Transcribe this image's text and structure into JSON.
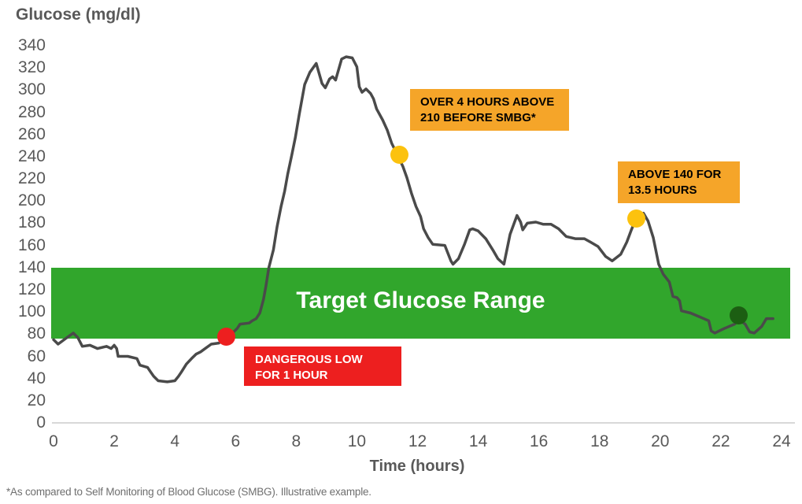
{
  "footnote": "*As compared to Self Monitoring of Blood Glucose (SMBG). Illustrative example.",
  "chart_data": {
    "type": "line",
    "title": "",
    "ylabel": "Glucose (mg/dl)",
    "xlabel": "Time (hours)",
    "xlim": [
      0,
      24
    ],
    "ylim": [
      0,
      340
    ],
    "x_ticks": [
      0,
      2,
      4,
      6,
      8,
      10,
      12,
      14,
      16,
      18,
      20,
      22,
      24
    ],
    "y_ticks": [
      0,
      20,
      40,
      60,
      80,
      100,
      120,
      140,
      160,
      180,
      200,
      220,
      240,
      260,
      280,
      300,
      320,
      340
    ],
    "grid": false,
    "line_color": "#4a4a4a",
    "axis_color": "#d8d8d8",
    "text_color": "#595959",
    "target_range": {
      "label": "Target Glucose Range",
      "low": 80,
      "high": 140,
      "color": "#31a62c"
    },
    "series": [
      {
        "name": "glucose",
        "points": [
          [
            0,
            75
          ],
          [
            0.15,
            71
          ],
          [
            0.45,
            77
          ],
          [
            0.65,
            81
          ],
          [
            0.8,
            77
          ],
          [
            0.95,
            69
          ],
          [
            1.2,
            70
          ],
          [
            1.45,
            67
          ],
          [
            1.75,
            69
          ],
          [
            1.9,
            67
          ],
          [
            2.0,
            70
          ],
          [
            2.08,
            67
          ],
          [
            2.13,
            60
          ],
          [
            2.45,
            60
          ],
          [
            2.75,
            58
          ],
          [
            2.85,
            52
          ],
          [
            3.1,
            50
          ],
          [
            3.2,
            46
          ],
          [
            3.3,
            42
          ],
          [
            3.45,
            38
          ],
          [
            3.75,
            37
          ],
          [
            4.0,
            38
          ],
          [
            4.12,
            42
          ],
          [
            4.22,
            46
          ],
          [
            4.38,
            53
          ],
          [
            4.55,
            58
          ],
          [
            4.7,
            62
          ],
          [
            4.85,
            64
          ],
          [
            5.0,
            67
          ],
          [
            5.2,
            71
          ],
          [
            5.45,
            72
          ],
          [
            5.6,
            75
          ],
          [
            5.7,
            78
          ],
          [
            5.9,
            81
          ],
          [
            6.05,
            85
          ],
          [
            6.15,
            89
          ],
          [
            6.45,
            90
          ],
          [
            6.55,
            92
          ],
          [
            6.68,
            94
          ],
          [
            6.8,
            99
          ],
          [
            6.92,
            111
          ],
          [
            7.0,
            123
          ],
          [
            7.1,
            140
          ],
          [
            7.25,
            156
          ],
          [
            7.37,
            177
          ],
          [
            7.5,
            195
          ],
          [
            7.62,
            209
          ],
          [
            7.72,
            224
          ],
          [
            7.85,
            241
          ],
          [
            7.97,
            257
          ],
          [
            8.1,
            278
          ],
          [
            8.28,
            305
          ],
          [
            8.45,
            316
          ],
          [
            8.66,
            324
          ],
          [
            8.85,
            306
          ],
          [
            8.96,
            302
          ],
          [
            9.1,
            310
          ],
          [
            9.2,
            312
          ],
          [
            9.3,
            309
          ],
          [
            9.5,
            328
          ],
          [
            9.65,
            330
          ],
          [
            9.85,
            329
          ],
          [
            10.0,
            321
          ],
          [
            10.08,
            303
          ],
          [
            10.17,
            298
          ],
          [
            10.3,
            301
          ],
          [
            10.45,
            297
          ],
          [
            10.55,
            292
          ],
          [
            10.65,
            283
          ],
          [
            10.85,
            273
          ],
          [
            11.0,
            264
          ],
          [
            11.15,
            252
          ],
          [
            11.35,
            241
          ],
          [
            11.52,
            231
          ],
          [
            11.65,
            221
          ],
          [
            11.8,
            207
          ],
          [
            11.95,
            195
          ],
          [
            12.1,
            186
          ],
          [
            12.2,
            175
          ],
          [
            12.35,
            167
          ],
          [
            12.5,
            161
          ],
          [
            12.9,
            160
          ],
          [
            13.1,
            146
          ],
          [
            13.17,
            143
          ],
          [
            13.35,
            148
          ],
          [
            13.55,
            161
          ],
          [
            13.72,
            174
          ],
          [
            13.82,
            175
          ],
          [
            14.0,
            173
          ],
          [
            14.25,
            166
          ],
          [
            14.5,
            155
          ],
          [
            14.65,
            148
          ],
          [
            14.85,
            143
          ],
          [
            15.05,
            170
          ],
          [
            15.28,
            187
          ],
          [
            15.4,
            181
          ],
          [
            15.47,
            174
          ],
          [
            15.62,
            180
          ],
          [
            15.9,
            181
          ],
          [
            16.15,
            179
          ],
          [
            16.4,
            179
          ],
          [
            16.65,
            175
          ],
          [
            16.9,
            168
          ],
          [
            17.2,
            166
          ],
          [
            17.5,
            166
          ],
          [
            17.7,
            163
          ],
          [
            17.95,
            159
          ],
          [
            18.2,
            150
          ],
          [
            18.42,
            146
          ],
          [
            18.7,
            152
          ],
          [
            18.9,
            163
          ],
          [
            19.05,
            174
          ],
          [
            19.2,
            184
          ],
          [
            19.45,
            189
          ],
          [
            19.6,
            182
          ],
          [
            19.77,
            167
          ],
          [
            19.95,
            143
          ],
          [
            20.1,
            134
          ],
          [
            20.3,
            127
          ],
          [
            20.42,
            114
          ],
          [
            20.55,
            113
          ],
          [
            20.64,
            110
          ],
          [
            20.7,
            101
          ],
          [
            21.0,
            99
          ],
          [
            21.35,
            95
          ],
          [
            21.6,
            92
          ],
          [
            21.68,
            83
          ],
          [
            21.8,
            81
          ],
          [
            22.1,
            85
          ],
          [
            22.45,
            89
          ],
          [
            22.6,
            93
          ],
          [
            22.8,
            89
          ],
          [
            22.95,
            82
          ],
          [
            23.1,
            81
          ],
          [
            23.35,
            87
          ],
          [
            23.5,
            94
          ],
          [
            23.72,
            94
          ]
        ]
      }
    ],
    "markers": [
      {
        "name": "dangerous-low",
        "t": 5.7,
        "value": 78,
        "color": "#ed1f1f"
      },
      {
        "name": "over-210-smbg",
        "t": 11.4,
        "value": 242,
        "color": "#fcc20e"
      },
      {
        "name": "above-140",
        "t": 19.2,
        "value": 184,
        "color": "#fcc20e"
      },
      {
        "name": "end-in-range",
        "t": 22.58,
        "value": 97,
        "color": "#1c5e12"
      }
    ],
    "annotations": [
      {
        "name": "over-4-hours",
        "lines": [
          "OVER 4 HOURS ABOVE",
          "210 BEFORE SMBG*"
        ],
        "bg": "#f5a529",
        "fg": "#000000"
      },
      {
        "name": "above-140",
        "lines": [
          "ABOVE 140 FOR",
          "13.5 HOURS"
        ],
        "bg": "#f5a529",
        "fg": "#000000"
      },
      {
        "name": "dangerous-low",
        "lines": [
          "DANGEROUS LOW",
          "FOR 1 HOUR"
        ],
        "bg": "#ed1f1f",
        "fg": "#ffffff"
      }
    ],
    "legend": "none"
  }
}
